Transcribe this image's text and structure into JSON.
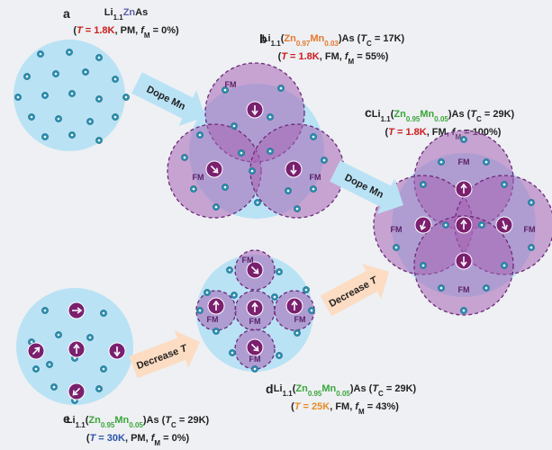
{
  "panels": [
    {
      "label": "a",
      "formula": [
        {
          "text": "Li"
        },
        {
          "text": "1.1",
          "sub": true
        },
        {
          "text": "Zn",
          "color": "#5b5fb5"
        },
        {
          "text": "As"
        }
      ],
      "conditions": [
        {
          "text": "("
        },
        {
          "text": "T",
          "italic": true,
          "color": "#d7191c"
        },
        {
          "text": " = 1.8K",
          "color": "#d7191c"
        },
        {
          "text": ", PM, "
        },
        {
          "text": "f",
          "italic": true
        },
        {
          "text": "M",
          "sub": true
        },
        {
          "text": " = 0%)"
        }
      ],
      "fm_labels": []
    },
    {
      "label": "b",
      "formula": [
        {
          "text": "Li"
        },
        {
          "text": "1.1",
          "sub": true
        },
        {
          "text": "("
        },
        {
          "text": "Zn",
          "color": "#e8772e"
        },
        {
          "text": "0.97",
          "sub": true,
          "color": "#e8772e"
        },
        {
          "text": "Mn",
          "color": "#e8772e"
        },
        {
          "text": "0.03",
          "sub": true,
          "color": "#e8772e"
        },
        {
          "text": ")As ("
        },
        {
          "text": "T",
          "italic": true
        },
        {
          "text": "C",
          "sub": true
        },
        {
          "text": " = 17K)"
        }
      ],
      "conditions": [
        {
          "text": "("
        },
        {
          "text": "T",
          "italic": true,
          "color": "#d7191c"
        },
        {
          "text": " = 1.8K",
          "color": "#d7191c"
        },
        {
          "text": ", FM, "
        },
        {
          "text": "f",
          "italic": true
        },
        {
          "text": "M",
          "sub": true
        },
        {
          "text": " = 55%)"
        }
      ],
      "fm_labels": [
        "FM",
        "FM",
        "FM"
      ]
    },
    {
      "label": "c",
      "formula": [
        {
          "text": "Li"
        },
        {
          "text": "1.1",
          "sub": true
        },
        {
          "text": "("
        },
        {
          "text": "Zn",
          "color": "#3aa63a"
        },
        {
          "text": "0.95",
          "sub": true,
          "color": "#3aa63a"
        },
        {
          "text": "Mn",
          "color": "#3aa63a"
        },
        {
          "text": "0.05",
          "sub": true,
          "color": "#3aa63a"
        },
        {
          "text": ")As ("
        },
        {
          "text": "T",
          "italic": true
        },
        {
          "text": "C",
          "sub": true
        },
        {
          "text": " = 29K)"
        }
      ],
      "conditions": [
        {
          "text": "("
        },
        {
          "text": "T",
          "italic": true,
          "color": "#d7191c"
        },
        {
          "text": " = 1.8K",
          "color": "#d7191c"
        },
        {
          "text": ", FM, "
        },
        {
          "text": "f",
          "italic": true
        },
        {
          "text": "M",
          "sub": true
        },
        {
          "text": " = 100%)"
        }
      ],
      "fm_labels": [
        "FM",
        "FM",
        "FM",
        "FM"
      ]
    },
    {
      "label": "d",
      "formula": [
        {
          "text": "Li"
        },
        {
          "text": "1.1",
          "sub": true
        },
        {
          "text": "("
        },
        {
          "text": "Zn",
          "color": "#3aa63a"
        },
        {
          "text": "0.95",
          "sub": true,
          "color": "#3aa63a"
        },
        {
          "text": "Mn",
          "color": "#3aa63a"
        },
        {
          "text": "0.05",
          "sub": true,
          "color": "#3aa63a"
        },
        {
          "text": ")As ("
        },
        {
          "text": "T",
          "italic": true
        },
        {
          "text": "C",
          "sub": true
        },
        {
          "text": " = 29K)"
        }
      ],
      "conditions": [
        {
          "text": "("
        },
        {
          "text": "T",
          "italic": true,
          "color": "#f08a24"
        },
        {
          "text": " = 25K",
          "color": "#f08a24"
        },
        {
          "text": ", FM, "
        },
        {
          "text": "f",
          "italic": true
        },
        {
          "text": "M",
          "sub": true
        },
        {
          "text": " = 43%)"
        }
      ],
      "fm_labels": [
        "FM",
        "FM",
        "FM",
        "FM",
        "FM"
      ]
    },
    {
      "label": "e",
      "formula": [
        {
          "text": "Li"
        },
        {
          "text": "1.1",
          "sub": true
        },
        {
          "text": "("
        },
        {
          "text": "Zn",
          "color": "#3aa63a"
        },
        {
          "text": "0.95",
          "sub": true,
          "color": "#3aa63a"
        },
        {
          "text": "Mn",
          "color": "#3aa63a"
        },
        {
          "text": "0.05",
          "sub": true,
          "color": "#3aa63a"
        },
        {
          "text": ")As ("
        },
        {
          "text": "T",
          "italic": true
        },
        {
          "text": "C",
          "sub": true
        },
        {
          "text": " = 29K)"
        }
      ],
      "conditions": [
        {
          "text": "("
        },
        {
          "text": "T",
          "italic": true,
          "color": "#2c55a8"
        },
        {
          "text": " = 30K",
          "color": "#2c55a8"
        },
        {
          "text": ", PM, "
        },
        {
          "text": "f",
          "italic": true
        },
        {
          "text": "M",
          "sub": true
        },
        {
          "text": " = 0%)"
        }
      ],
      "fm_labels": []
    }
  ],
  "arrows": [
    {
      "label": [
        {
          "text": "Dope Mn"
        }
      ],
      "color": "#b9e2f5"
    },
    {
      "label": [
        {
          "text": "Dope Mn"
        }
      ],
      "color": "#b9e2f5"
    },
    {
      "label": [
        {
          "text": "Decrease "
        },
        {
          "text": "T",
          "italic": true
        }
      ],
      "color": "#fcdcc2"
    },
    {
      "label": [
        {
          "text": "Decrease "
        },
        {
          "text": "T",
          "italic": true
        }
      ],
      "color": "#fcdcc2"
    }
  ]
}
